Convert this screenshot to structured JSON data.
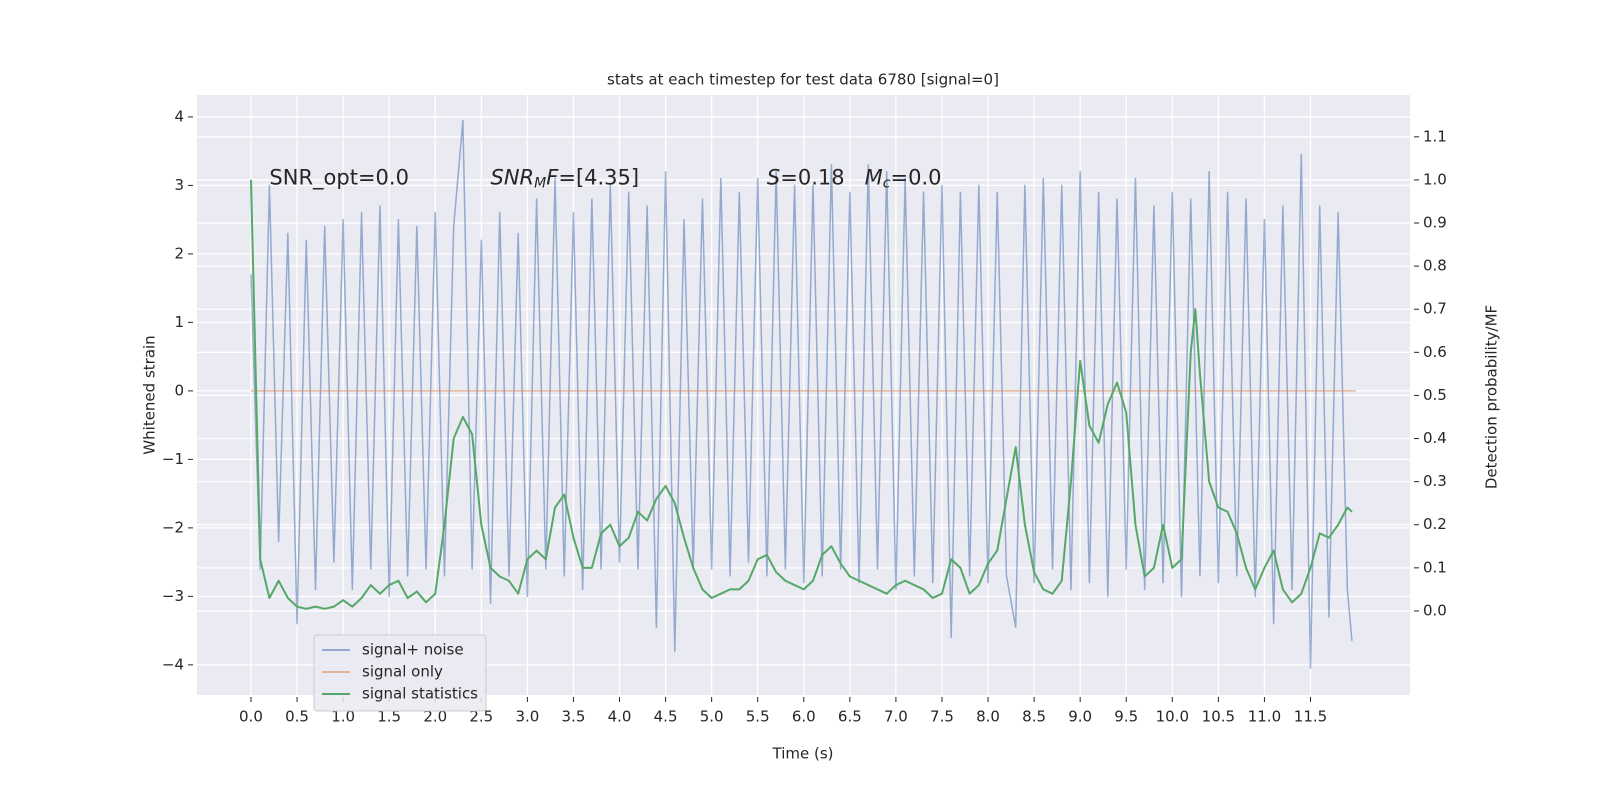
{
  "chart_data": {
    "type": "line",
    "title": "stats at each timestep for test data 6780 [signal=0]",
    "xlabel": "Time (s)",
    "ylabel": "Whitened strain",
    "y2label": "Detection probability/MF",
    "annotations": [
      {
        "x": 0.2,
        "y": 3.1,
        "parts": [
          {
            "text": "SNR_opt=0.0",
            "style": "normal"
          }
        ]
      },
      {
        "x": 2.6,
        "y": 3.1,
        "parts": [
          {
            "text": "SNR",
            "style": "italic"
          },
          {
            "text": "M",
            "style": "sub"
          },
          {
            "text": "F",
            "style": "italic"
          },
          {
            "text": "=[4.35]",
            "style": "normal"
          }
        ]
      },
      {
        "x": 5.6,
        "y": 3.1,
        "parts": [
          {
            "text": "S",
            "style": "italic"
          },
          {
            "text": "=0.18   ",
            "style": "normal"
          },
          {
            "text": "M",
            "style": "italic"
          },
          {
            "text": "c",
            "style": "sub"
          },
          {
            "text": "=0.0",
            "style": "normal"
          }
        ]
      }
    ],
    "xlim": [
      -0.586,
      12.58
    ],
    "ylim": [
      -4.44,
      4.32
    ],
    "y2lim": [
      -0.195,
      1.197
    ],
    "xticks": [
      {
        "value": 0,
        "label": "0.0"
      },
      0.5,
      {
        "value": 1,
        "label": "1.0"
      },
      1.5,
      {
        "value": 2,
        "label": "2.0"
      },
      2.5,
      {
        "value": 3,
        "label": "3.0"
      },
      3.5,
      {
        "value": 4,
        "label": "4.0"
      },
      4.5,
      {
        "value": 5,
        "label": "5.0"
      },
      5.5,
      {
        "value": 6,
        "label": "6.0"
      },
      6.5,
      {
        "value": 7,
        "label": "7.0"
      },
      7.5,
      {
        "value": 8,
        "label": "8.0"
      },
      8.5,
      {
        "value": 9,
        "label": "9.0"
      },
      9.5,
      {
        "value": 10,
        "label": "10.0"
      },
      10.5,
      {
        "value": 11,
        "label": "11.0"
      },
      11.5
    ],
    "yticks": [
      {
        "value": -4,
        "label": "−4"
      },
      {
        "value": -3,
        "label": "−3"
      },
      {
        "value": -2,
        "label": "−2"
      },
      {
        "value": -1,
        "label": "−1"
      },
      0,
      1,
      2,
      3,
      4
    ],
    "y2ticks": [
      {
        "value": 0,
        "label": "0.0"
      },
      0.1,
      0.2,
      0.3,
      0.4,
      0.5,
      0.6,
      0.7,
      0.8,
      0.9,
      {
        "value": 1,
        "label": "1.0"
      },
      1.1
    ],
    "grid": true,
    "legend_loc": "lower left",
    "series": [
      {
        "name": "signal+ noise",
        "color": "#4c72b0",
        "opacity": 0.55,
        "x": [
          0.0,
          0.1,
          0.2,
          0.3,
          0.4,
          0.5,
          0.6,
          0.7,
          0.8,
          0.9,
          1.0,
          1.1,
          1.2,
          1.3,
          1.4,
          1.5,
          1.6,
          1.7,
          1.8,
          1.9,
          2.0,
          2.1,
          2.2,
          2.3,
          2.4,
          2.5,
          2.6,
          2.7,
          2.8,
          2.9,
          3.0,
          3.1,
          3.2,
          3.3,
          3.4,
          3.5,
          3.6,
          3.7,
          3.8,
          3.9,
          4.0,
          4.1,
          4.2,
          4.3,
          4.4,
          4.5,
          4.6,
          4.7,
          4.8,
          4.9,
          5.0,
          5.1,
          5.2,
          5.3,
          5.4,
          5.5,
          5.6,
          5.7,
          5.8,
          5.9,
          6.0,
          6.1,
          6.2,
          6.3,
          6.4,
          6.5,
          6.6,
          6.7,
          6.8,
          6.9,
          7.0,
          7.1,
          7.2,
          7.3,
          7.4,
          7.5,
          7.6,
          7.7,
          7.8,
          7.9,
          8.0,
          8.1,
          8.2,
          8.3,
          8.4,
          8.5,
          8.6,
          8.7,
          8.8,
          8.9,
          9.0,
          9.1,
          9.2,
          9.3,
          9.4,
          9.5,
          9.6,
          9.7,
          9.8,
          9.9,
          10.0,
          10.1,
          10.2,
          10.3,
          10.4,
          10.5,
          10.6,
          10.7,
          10.8,
          10.9,
          11.0,
          11.1,
          11.2,
          11.3,
          11.4,
          11.5,
          11.6,
          11.7,
          11.8,
          11.9,
          11.95
        ],
        "values": [
          1.7,
          -2.6,
          3.0,
          -2.2,
          2.3,
          -3.4,
          2.2,
          -2.9,
          2.4,
          -2.5,
          2.5,
          -2.9,
          2.6,
          -2.6,
          2.7,
          -3.0,
          2.5,
          -2.7,
          2.4,
          -2.6,
          2.6,
          -2.7,
          2.4,
          3.95,
          -2.6,
          2.2,
          -3.1,
          2.6,
          -2.7,
          2.3,
          -3.0,
          2.8,
          -2.6,
          3.1,
          -2.7,
          2.6,
          -2.9,
          2.8,
          -2.6,
          3.0,
          -2.5,
          2.9,
          -2.6,
          2.7,
          -3.45,
          3.2,
          -3.8,
          2.5,
          -2.6,
          2.8,
          -2.6,
          3.1,
          -2.7,
          2.9,
          -2.5,
          3.1,
          -2.7,
          3.2,
          -2.6,
          3.0,
          -2.8,
          3.0,
          -2.7,
          3.3,
          -2.6,
          2.9,
          -2.8,
          3.3,
          -2.6,
          3.2,
          -2.9,
          3.1,
          -2.7,
          2.9,
          -2.8,
          3.0,
          -3.6,
          2.9,
          -2.7,
          3.0,
          -2.8,
          2.9,
          -2.7,
          -3.45,
          3.0,
          -2.8,
          3.1,
          -2.6,
          3.0,
          -2.9,
          3.2,
          -2.8,
          2.9,
          -3.0,
          2.8,
          -2.6,
          3.1,
          -2.9,
          2.7,
          -2.8,
          2.9,
          -3.0,
          2.8,
          -2.7,
          3.2,
          -2.8,
          2.9,
          -2.7,
          2.8,
          -3.0,
          2.5,
          -3.4,
          2.7,
          -2.9,
          3.45,
          -4.05,
          2.7,
          -3.3,
          2.6,
          -2.9,
          -3.65
        ]
      },
      {
        "name": "signal only",
        "color": "#dd8452",
        "opacity": 0.55,
        "x": [
          0.0,
          11.99
        ],
        "values": [
          0,
          0
        ]
      },
      {
        "name": "signal statistics",
        "color": "#55a868",
        "opacity": 1,
        "axis": "y2",
        "x": [
          0.0,
          0.1,
          0.2,
          0.3,
          0.4,
          0.5,
          0.6,
          0.7,
          0.8,
          0.9,
          1.0,
          1.1,
          1.2,
          1.3,
          1.4,
          1.5,
          1.6,
          1.7,
          1.8,
          1.9,
          2.0,
          2.1,
          2.2,
          2.3,
          2.4,
          2.5,
          2.6,
          2.7,
          2.8,
          2.9,
          3.0,
          3.1,
          3.2,
          3.3,
          3.4,
          3.5,
          3.6,
          3.7,
          3.8,
          3.9,
          4.0,
          4.1,
          4.2,
          4.3,
          4.4,
          4.5,
          4.6,
          4.7,
          4.8,
          4.9,
          5.0,
          5.1,
          5.2,
          5.3,
          5.4,
          5.5,
          5.6,
          5.7,
          5.8,
          5.9,
          6.0,
          6.1,
          6.2,
          6.3,
          6.4,
          6.5,
          6.6,
          6.7,
          6.8,
          6.9,
          7.0,
          7.1,
          7.2,
          7.3,
          7.4,
          7.5,
          7.6,
          7.7,
          7.8,
          7.9,
          8.0,
          8.1,
          8.2,
          8.3,
          8.4,
          8.5,
          8.6,
          8.7,
          8.8,
          8.9,
          9.0,
          9.1,
          9.2,
          9.3,
          9.4,
          9.5,
          9.6,
          9.7,
          9.8,
          9.9,
          10.0,
          10.1,
          10.2,
          10.25,
          10.3,
          10.4,
          10.5,
          10.6,
          10.7,
          10.8,
          10.9,
          11.0,
          11.1,
          11.2,
          11.3,
          11.4,
          11.5,
          11.6,
          11.7,
          11.8,
          11.9,
          11.95
        ],
        "values": [
          1.0,
          0.12,
          0.03,
          0.07,
          0.03,
          0.01,
          0.005,
          0.01,
          0.005,
          0.01,
          0.025,
          0.01,
          0.03,
          0.06,
          0.04,
          0.06,
          0.07,
          0.03,
          0.045,
          0.02,
          0.04,
          0.2,
          0.4,
          0.45,
          0.41,
          0.2,
          0.1,
          0.08,
          0.07,
          0.04,
          0.12,
          0.14,
          0.12,
          0.24,
          0.27,
          0.17,
          0.1,
          0.1,
          0.18,
          0.2,
          0.15,
          0.17,
          0.23,
          0.21,
          0.26,
          0.29,
          0.25,
          0.17,
          0.1,
          0.05,
          0.03,
          0.04,
          0.05,
          0.05,
          0.07,
          0.12,
          0.13,
          0.09,
          0.07,
          0.06,
          0.05,
          0.07,
          0.13,
          0.15,
          0.11,
          0.08,
          0.07,
          0.06,
          0.05,
          0.04,
          0.06,
          0.07,
          0.06,
          0.05,
          0.03,
          0.04,
          0.12,
          0.1,
          0.04,
          0.06,
          0.11,
          0.14,
          0.26,
          0.38,
          0.2,
          0.09,
          0.05,
          0.04,
          0.07,
          0.3,
          0.58,
          0.43,
          0.39,
          0.48,
          0.53,
          0.46,
          0.2,
          0.08,
          0.1,
          0.2,
          0.1,
          0.12,
          0.6,
          0.7,
          0.55,
          0.3,
          0.24,
          0.23,
          0.18,
          0.1,
          0.05,
          0.1,
          0.14,
          0.05,
          0.02,
          0.04,
          0.1,
          0.18,
          0.17,
          0.2,
          0.24,
          0.23
        ]
      }
    ]
  }
}
